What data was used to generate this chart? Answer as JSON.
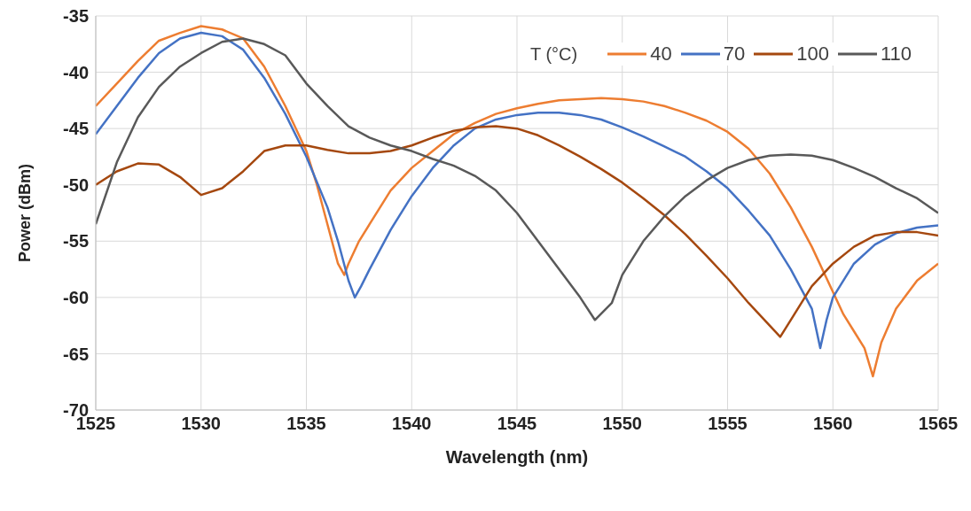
{
  "chart_data": {
    "type": "line",
    "xlabel": "Wavelength (nm)",
    "ylabel": "Power (dBm)",
    "legend_title": "T (°C)",
    "legend": "top right",
    "grid": true,
    "marker": "none",
    "line_style": "solid",
    "xlim": [
      1525,
      1565
    ],
    "xticks": [
      1525,
      1530,
      1535,
      1540,
      1545,
      1550,
      1555,
      1560,
      1565
    ],
    "ylim": [
      -70,
      -35
    ],
    "yticks": [
      -70,
      -65,
      -60,
      -55,
      -50,
      -45,
      -40,
      -35
    ],
    "series": [
      {
        "name": "40",
        "color": "#ed7d31",
        "x": [
          1525,
          1526,
          1527,
          1528,
          1529,
          1530,
          1531,
          1532,
          1533,
          1534,
          1535,
          1535.5,
          1536,
          1536.5,
          1536.8,
          1537,
          1537.5,
          1538,
          1539,
          1540,
          1541,
          1542,
          1543,
          1544,
          1545,
          1546,
          1547,
          1548,
          1549,
          1550,
          1551,
          1552,
          1553,
          1554,
          1555,
          1556,
          1557,
          1558,
          1559,
          1560,
          1560.5,
          1561,
          1561.5,
          1561.9,
          1562.3,
          1563,
          1564,
          1565
        ],
        "values": [
          -43,
          -41,
          -39,
          -37.2,
          -36.5,
          -35.9,
          -36.2,
          -37,
          -39.5,
          -43,
          -47,
          -50,
          -53.5,
          -57,
          -58,
          -57,
          -55,
          -53.5,
          -50.5,
          -48.5,
          -47,
          -45.5,
          -44.5,
          -43.7,
          -43.2,
          -42.8,
          -42.5,
          -42.4,
          -42.3,
          -42.4,
          -42.6,
          -43,
          -43.6,
          -44.3,
          -45.3,
          -46.8,
          -49,
          -52,
          -55.5,
          -59.5,
          -61.5,
          -63,
          -64.5,
          -67,
          -64,
          -61,
          -58.5,
          -57
        ]
      },
      {
        "name": "70",
        "color": "#4472c4",
        "x": [
          1525,
          1526,
          1527,
          1528,
          1529,
          1530,
          1531,
          1532,
          1533,
          1534,
          1535,
          1536,
          1536.5,
          1537,
          1537.3,
          1537.6,
          1538,
          1539,
          1540,
          1541,
          1542,
          1543,
          1544,
          1545,
          1546,
          1547,
          1548,
          1549,
          1550,
          1551,
          1552,
          1553,
          1554,
          1555,
          1556,
          1557,
          1558,
          1559,
          1559.4,
          1559.7,
          1560,
          1561,
          1562,
          1563,
          1564,
          1565
        ],
        "values": [
          -45.5,
          -43,
          -40.5,
          -38.3,
          -37,
          -36.5,
          -36.8,
          -38,
          -40.5,
          -43.7,
          -47.5,
          -52,
          -55,
          -58.5,
          -60,
          -59,
          -57.5,
          -54,
          -51,
          -48.5,
          -46.5,
          -45,
          -44.2,
          -43.8,
          -43.6,
          -43.6,
          -43.8,
          -44.2,
          -44.9,
          -45.7,
          -46.6,
          -47.5,
          -48.8,
          -50.3,
          -52.3,
          -54.5,
          -57.5,
          -61,
          -64.5,
          -62,
          -60,
          -57,
          -55.3,
          -54.3,
          -53.8,
          -53.6
        ]
      },
      {
        "name": "100",
        "color": "#a5480f",
        "x": [
          1525,
          1526,
          1527,
          1528,
          1529,
          1530,
          1531,
          1532,
          1533,
          1534,
          1535,
          1536,
          1537,
          1538,
          1539,
          1540,
          1541,
          1542,
          1543,
          1544,
          1545,
          1546,
          1547,
          1548,
          1549,
          1550,
          1551,
          1552,
          1553,
          1554,
          1555,
          1556,
          1557,
          1557.5,
          1558,
          1559,
          1560,
          1561,
          1562,
          1563,
          1564,
          1565
        ],
        "values": [
          -50,
          -48.8,
          -48.1,
          -48.2,
          -49.3,
          -50.9,
          -50.3,
          -48.8,
          -47,
          -46.5,
          -46.5,
          -46.9,
          -47.2,
          -47.2,
          -47,
          -46.5,
          -45.8,
          -45.2,
          -44.9,
          -44.8,
          -45,
          -45.6,
          -46.5,
          -47.5,
          -48.6,
          -49.8,
          -51.2,
          -52.7,
          -54.4,
          -56.3,
          -58.3,
          -60.5,
          -62.5,
          -63.5,
          -62,
          -59,
          -57,
          -55.5,
          -54.5,
          -54.2,
          -54.2,
          -54.5
        ]
      },
      {
        "name": "110",
        "color": "#595959",
        "x": [
          1525,
          1526,
          1527,
          1528,
          1529,
          1530,
          1531,
          1532,
          1533,
          1534,
          1535,
          1536,
          1537,
          1538,
          1539,
          1540,
          1541,
          1542,
          1543,
          1544,
          1545,
          1546,
          1547,
          1548,
          1548.7,
          1549.5,
          1550,
          1551,
          1552,
          1553,
          1554,
          1555,
          1556,
          1557,
          1558,
          1559,
          1560,
          1561,
          1562,
          1563,
          1564,
          1565
        ],
        "values": [
          -53.5,
          -48,
          -44,
          -41.3,
          -39.5,
          -38.3,
          -37.3,
          -37,
          -37.5,
          -38.5,
          -41,
          -43,
          -44.8,
          -45.8,
          -46.5,
          -47,
          -47.7,
          -48.3,
          -49.2,
          -50.5,
          -52.5,
          -55,
          -57.5,
          -60,
          -62,
          -60.5,
          -58,
          -55,
          -52.8,
          -51,
          -49.6,
          -48.5,
          -47.8,
          -47.4,
          -47.3,
          -47.4,
          -47.8,
          -48.5,
          -49.3,
          -50.3,
          -51.2,
          -52.5
        ]
      }
    ]
  }
}
